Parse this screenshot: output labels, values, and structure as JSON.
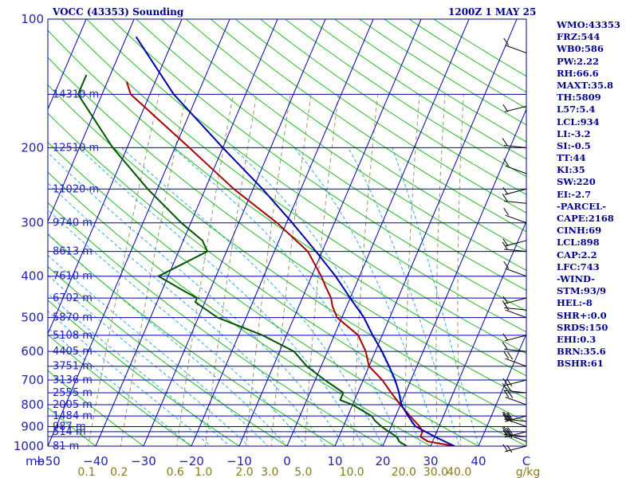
{
  "header": {
    "station": "VOCC (43353) Sounding",
    "time": "1200Z  1 MAY 25"
  },
  "indices": [
    "WMO:43353",
    "FRZ:544",
    "WB0:586",
    "PW:2.22",
    "RH:66.6",
    "MAXT:35.8",
    "TH:5809",
    "L57:5.4",
    "LCL:934",
    "LI:-3.2",
    "SI:-0.5",
    "TT:44",
    "KI:35",
    "SW:220",
    "EI:-2.7",
    "-PARCEL-",
    "CAPE:2168",
    "CINH:69",
    "LCL:898",
    "CAP:2.2",
    "LFC:743",
    "-WIND-",
    "STM:93/9",
    "HEL:-8",
    "SHR+:0.0",
    "SRDS:150",
    "EHI:0.3",
    "BRN:35.6",
    "BSHR:61"
  ],
  "colors": {
    "isobar": "#0000aa",
    "isotherm": "#0000aa",
    "dry_adiabat": "#22bb22",
    "moist_adiabat": "#33aadd",
    "mixing_ratio": "#999966",
    "temperature": "#aa0000",
    "dewpoint": "#005500",
    "parcel": "#0000aa",
    "text": "#000088",
    "axis_text": "#2222bb",
    "mixing_text": "#8a7a1a"
  },
  "chart_data": {
    "type": "line",
    "title": "VOCC (43353) Sounding",
    "xlabel": "°C",
    "ylabel": "mb",
    "pressure_range_mb": [
      1000,
      100
    ],
    "temperature_range_c": [
      -50,
      50
    ],
    "pressure_levels": [
      100,
      200,
      300,
      400,
      500,
      600,
      700,
      800,
      900,
      1000
    ],
    "pressure_labels": [
      "100",
      "200",
      "300",
      "400",
      "500",
      "600",
      "700",
      "800",
      "900",
      "1000"
    ],
    "pressure_axis_unit": "mb",
    "temperature_ticks": [
      -50,
      -40,
      -30,
      -20,
      -10,
      0,
      10,
      20,
      30,
      40,
      50
    ],
    "temperature_tick_labels": [
      "−50",
      "−40",
      "−30",
      "−20",
      "−10",
      "0",
      "10",
      "20",
      "30",
      "40",
      "C"
    ],
    "mixing_ratio_ticks": [
      0.1,
      0.2,
      0.6,
      1.0,
      2.0,
      3.0,
      5.0,
      10.0,
      20.0,
      30.0,
      40.0
    ],
    "mixing_ratio_labels": [
      "0.1",
      "0.2",
      "0.6",
      "1.0",
      "2.0",
      "3.0",
      "5.0",
      "10.0",
      "20.0",
      "30.0",
      "40.0"
    ],
    "mixing_ratio_unit": "g/kg",
    "heights": [
      {
        "p": 150,
        "label": "14310 m"
      },
      {
        "p": 200,
        "label": "12510 m"
      },
      {
        "p": 250,
        "label": "11020 m"
      },
      {
        "p": 300,
        "label": "9740 m"
      },
      {
        "p": 350,
        "label": "8613 m"
      },
      {
        "p": 400,
        "label": "7610 m"
      },
      {
        "p": 450,
        "label": "6702 m"
      },
      {
        "p": 500,
        "label": "5870 m"
      },
      {
        "p": 550,
        "label": "5108 m"
      },
      {
        "p": 600,
        "label": "4405 m"
      },
      {
        "p": 650,
        "label": "3751 m"
      },
      {
        "p": 700,
        "label": "3136 m"
      },
      {
        "p": 750,
        "label": "2555 m"
      },
      {
        "p": 800,
        "label": "2005 m"
      },
      {
        "p": 850,
        "label": "1484 m"
      },
      {
        "p": 900,
        "label": "987 m"
      },
      {
        "p": 925,
        "label": "514 m"
      },
      {
        "p": 1000,
        "label": "81 m"
      }
    ],
    "series": [
      {
        "key": "temperature",
        "points": [
          [
            1000,
            35.0
          ],
          [
            975,
            29.0
          ],
          [
            950,
            27.0
          ],
          [
            925,
            27.0
          ],
          [
            900,
            26.0
          ],
          [
            850,
            23.0
          ],
          [
            800,
            20.0
          ],
          [
            750,
            17.0
          ],
          [
            700,
            14.0
          ],
          [
            650,
            10.0
          ],
          [
            600,
            8.0
          ],
          [
            550,
            5.0
          ],
          [
            500,
            -1.0
          ],
          [
            470,
            -3.0
          ],
          [
            450,
            -4.0
          ],
          [
            425,
            -6.0
          ],
          [
            400,
            -8.0
          ],
          [
            350,
            -13.0
          ],
          [
            300,
            -22.0
          ],
          [
            250,
            -34.0
          ],
          [
            200,
            -47.0
          ],
          [
            150,
            -64.0
          ],
          [
            140,
            -66.0
          ]
        ]
      },
      {
        "key": "dewpoint",
        "points": [
          [
            1000,
            25.0
          ],
          [
            975,
            23.0
          ],
          [
            950,
            22.0
          ],
          [
            925,
            20.0
          ],
          [
            900,
            18.0
          ],
          [
            870,
            16.0
          ],
          [
            850,
            15.0
          ],
          [
            820,
            12.0
          ],
          [
            800,
            10.0
          ],
          [
            780,
            7.0
          ],
          [
            750,
            7.0
          ],
          [
            700,
            2.0
          ],
          [
            650,
            -3.0
          ],
          [
            600,
            -7.0
          ],
          [
            550,
            -15.0
          ],
          [
            500,
            -26.0
          ],
          [
            460,
            -32.0
          ],
          [
            450,
            -32.0
          ],
          [
            435,
            -35.0
          ],
          [
            400,
            -42.0
          ],
          [
            350,
            -34.0
          ],
          [
            330,
            -36.0
          ],
          [
            300,
            -42.0
          ],
          [
            250,
            -52.0
          ],
          [
            200,
            -63.0
          ],
          [
            150,
            -75.0
          ],
          [
            135,
            -75.0
          ]
        ]
      },
      {
        "key": "parcel",
        "points": [
          [
            1000,
            35.0
          ],
          [
            950,
            30.0
          ],
          [
            898,
            25.0
          ],
          [
            850,
            22.6
          ],
          [
            800,
            20.2
          ],
          [
            743,
            18.4
          ],
          [
            700,
            16.7
          ],
          [
            650,
            14.2
          ],
          [
            600,
            11.4
          ],
          [
            550,
            8.0
          ],
          [
            500,
            4.6
          ],
          [
            450,
            0.0
          ],
          [
            400,
            -5.0
          ],
          [
            350,
            -11.3
          ],
          [
            300,
            -18.8
          ],
          [
            250,
            -28.0
          ],
          [
            200,
            -40.0
          ],
          [
            150,
            -55.0
          ],
          [
            110,
            -68.0
          ]
        ]
      }
    ]
  }
}
